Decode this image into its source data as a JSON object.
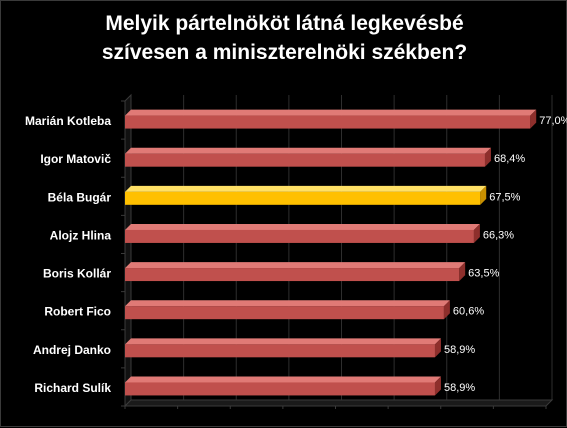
{
  "chart_data": {
    "type": "bar",
    "orientation": "horizontal",
    "title_lines": [
      "Melyik pártelnököt látná legkevésbé",
      "szívesen a miniszterelnöki székben?"
    ],
    "categories": [
      "Marián Kotleba",
      "Igor Matovič",
      "Béla Bugár",
      "Alojz Hlina",
      "Boris Kollár",
      "Robert Fico",
      "Andrej Danko",
      "Richard Sulík"
    ],
    "values": [
      77.0,
      68.4,
      67.5,
      66.3,
      63.5,
      60.6,
      58.9,
      58.9
    ],
    "value_labels": [
      "77,0%",
      "68,4%",
      "67,5%",
      "66,3%",
      "63,5%",
      "60,6%",
      "58,9%",
      "58,9%"
    ],
    "highlight_index": 2,
    "xlim": [
      0,
      80
    ],
    "grid": true,
    "colors": {
      "bar": "#c0504d",
      "bar_top": "#e07a76",
      "bar_end": "#8e2f2c",
      "highlight": "#ffc000",
      "highlight_top": "#ffe066",
      "highlight_end": "#c89000",
      "background": "#000000",
      "grid": "#2e2e2e",
      "floor": "#3a3a3a",
      "text": "#ffffff"
    }
  }
}
